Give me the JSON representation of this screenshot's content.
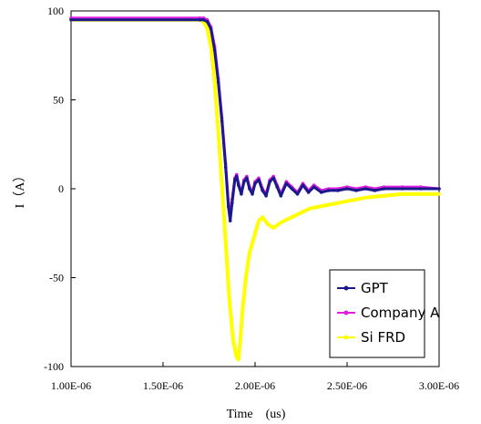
{
  "chart_data": {
    "type": "line",
    "title": "",
    "xlabel": "Time　(us)",
    "ylabel": "I（A）",
    "xlim": [
      1e-06,
      3e-06
    ],
    "ylim": [
      -100,
      100
    ],
    "x_ticks": [
      1e-06,
      1.5e-06,
      2e-06,
      2.5e-06,
      3e-06
    ],
    "x_tick_labels": [
      "1.00E-06",
      "1.50E-06",
      "2.00E-06",
      "2.50E-06",
      "3.00E-06"
    ],
    "y_ticks": [
      100,
      50,
      0,
      -50,
      -100
    ],
    "y_tick_labels": [
      "100",
      "50",
      "0",
      "-50",
      "-100"
    ],
    "grid": false,
    "legend_position": "bottom-right",
    "series": [
      {
        "name": "GPT",
        "color": "#1a1a8c",
        "x": [
          1e-06,
          1.7e-06,
          1.72e-06,
          1.74e-06,
          1.76e-06,
          1.78e-06,
          1.8e-06,
          1.82e-06,
          1.84e-06,
          1.855e-06,
          1.865e-06,
          1.875e-06,
          1.89e-06,
          1.9e-06,
          1.91e-06,
          1.925e-06,
          1.94e-06,
          1.955e-06,
          1.97e-06,
          1.985e-06,
          2e-06,
          2.02e-06,
          2.04e-06,
          2.06e-06,
          2.08e-06,
          2.1e-06,
          2.12e-06,
          2.14e-06,
          2.17e-06,
          2.2e-06,
          2.23e-06,
          2.26e-06,
          2.29e-06,
          2.32e-06,
          2.36e-06,
          2.4e-06,
          2.45e-06,
          2.5e-06,
          2.55e-06,
          2.6e-06,
          2.65e-06,
          2.7e-06,
          2.8e-06,
          2.9e-06,
          3e-06
        ],
        "y": [
          95,
          95,
          95,
          94,
          90,
          78,
          60,
          38,
          12,
          -10,
          -18,
          -8,
          5,
          7,
          2,
          -3,
          4,
          6,
          0,
          -3,
          3,
          5,
          -1,
          -4,
          4,
          6,
          1,
          -4,
          3,
          0,
          -3,
          2,
          -2,
          1,
          -2,
          -1,
          -1,
          0,
          -1,
          0,
          -1,
          0,
          0,
          0,
          0
        ]
      },
      {
        "name": "Company A",
        "color": "#e020e0",
        "x": [
          1e-06,
          1.7e-06,
          1.72e-06,
          1.74e-06,
          1.76e-06,
          1.78e-06,
          1.8e-06,
          1.82e-06,
          1.84e-06,
          1.855e-06,
          1.865e-06,
          1.875e-06,
          1.89e-06,
          1.9e-06,
          1.91e-06,
          1.925e-06,
          1.94e-06,
          1.955e-06,
          1.97e-06,
          1.985e-06,
          2e-06,
          2.02e-06,
          2.04e-06,
          2.06e-06,
          2.08e-06,
          2.1e-06,
          2.12e-06,
          2.14e-06,
          2.17e-06,
          2.2e-06,
          2.23e-06,
          2.26e-06,
          2.29e-06,
          2.32e-06,
          2.36e-06,
          2.4e-06,
          2.45e-06,
          2.5e-06,
          2.55e-06,
          2.6e-06,
          2.65e-06,
          2.7e-06,
          2.8e-06,
          2.9e-06,
          3e-06
        ],
        "y": [
          96,
          96,
          96,
          95,
          91,
          80,
          62,
          40,
          14,
          -8,
          -15,
          -6,
          6,
          8,
          3,
          -2,
          5,
          7,
          1,
          -2,
          4,
          6,
          0,
          -3,
          5,
          7,
          2,
          -3,
          4,
          1,
          -2,
          3,
          -1,
          2,
          -1,
          0,
          0,
          1,
          0,
          1,
          0,
          1,
          1,
          1,
          0
        ]
      },
      {
        "name": "Si FRD",
        "color": "#ffff00",
        "x": [
          1e-06,
          1.7e-06,
          1.72e-06,
          1.74e-06,
          1.76e-06,
          1.78e-06,
          1.8e-06,
          1.82e-06,
          1.84e-06,
          1.86e-06,
          1.88e-06,
          1.9e-06,
          1.91e-06,
          1.92e-06,
          1.93e-06,
          1.95e-06,
          1.97e-06,
          2e-06,
          2.02e-06,
          2.04e-06,
          2.07e-06,
          2.1e-06,
          2.14e-06,
          2.18e-06,
          2.22e-06,
          2.26e-06,
          2.3e-06,
          2.35e-06,
          2.4e-06,
          2.45e-06,
          2.5e-06,
          2.55e-06,
          2.6e-06,
          2.7e-06,
          2.8e-06,
          2.9e-06,
          3e-06
        ],
        "y": [
          95,
          95,
          94,
          90,
          80,
          60,
          32,
          2,
          -30,
          -62,
          -85,
          -95,
          -96,
          -85,
          -70,
          -50,
          -36,
          -25,
          -18,
          -16,
          -20,
          -22,
          -19,
          -17,
          -15,
          -13,
          -11,
          -10,
          -9,
          -8,
          -7,
          -6,
          -5,
          -4,
          -3,
          -3,
          -3
        ]
      }
    ]
  }
}
